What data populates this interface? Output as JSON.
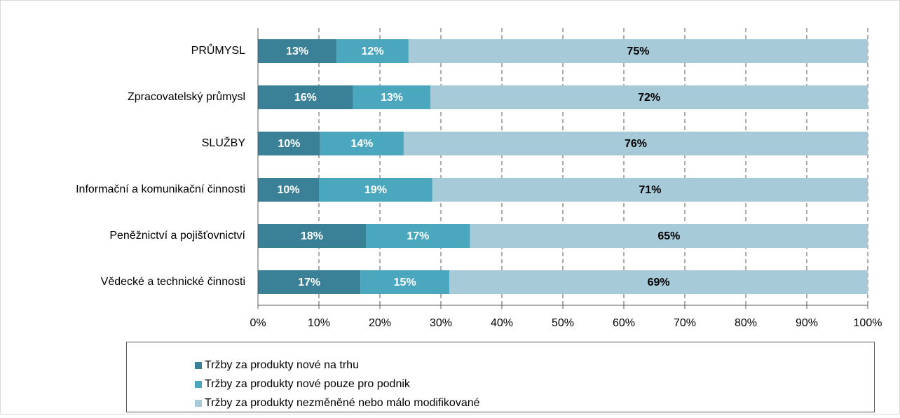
{
  "chart_data": {
    "type": "stacked-barh",
    "categories": [
      "PRŮMYSL",
      "Zpracovatelský průmysl",
      "SLUŽBY",
      "Informační a komunikační činnosti",
      "Peněžnictví a pojišťovnictví",
      "Vědecké a technické činnosti"
    ],
    "series": [
      {
        "name": "Tržby za produkty nové na trhu",
        "color": "#3a8096",
        "label_color": "#ffffff",
        "values": [
          12.9,
          15.6,
          10.2,
          10.0,
          17.7,
          16.8
        ],
        "value_labels": [
          "13%",
          "16%",
          "10%",
          "10%",
          "18%",
          "17%"
        ]
      },
      {
        "name": "Tržby za produkty nové pouze pro podnik",
        "color": "#4ba7bd",
        "label_color": "#ffffff",
        "values": [
          11.8,
          12.7,
          13.7,
          18.6,
          17.1,
          14.6
        ],
        "value_labels": [
          "12%",
          "13%",
          "14%",
          "19%",
          "17%",
          "15%"
        ]
      },
      {
        "name": "Tržby za produkty nezměněné nebo málo modifikované",
        "color": "#a6cad8",
        "label_color": "#000000",
        "values": [
          75.3,
          71.7,
          76.1,
          71.4,
          65.2,
          68.6
        ],
        "value_labels": [
          "75%",
          "72%",
          "76%",
          "71%",
          "65%",
          "69%"
        ]
      }
    ],
    "xlim": [
      0,
      100
    ],
    "xticks": [
      {
        "value": 0,
        "label": "0%"
      },
      {
        "value": 10,
        "label": "10%"
      },
      {
        "value": 20,
        "label": "20%"
      },
      {
        "value": 30,
        "label": "30%"
      },
      {
        "value": 40,
        "label": "40%"
      },
      {
        "value": 50,
        "label": "50%"
      },
      {
        "value": 60,
        "label": "60%"
      },
      {
        "value": 70,
        "label": "70%"
      },
      {
        "value": 80,
        "label": "80%"
      },
      {
        "value": 90,
        "label": "90%"
      },
      {
        "value": 100,
        "label": "100%"
      }
    ],
    "grid": true
  }
}
